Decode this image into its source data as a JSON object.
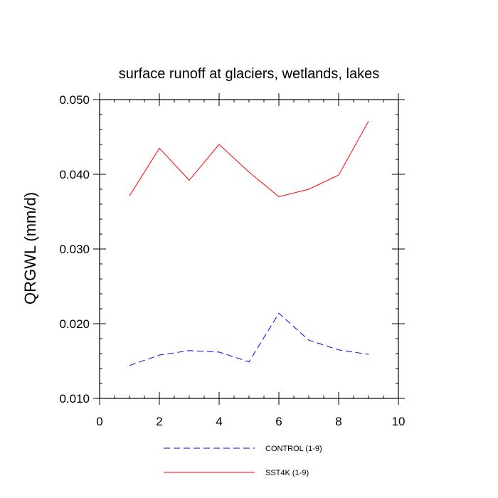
{
  "chart_data": {
    "type": "line",
    "title": "surface runoff at glaciers, wetlands, lakes",
    "ylabel": "QRGWL  (mm/d)",
    "xlabel": "",
    "xlim": [
      0,
      10
    ],
    "ylim": [
      0.01,
      0.05
    ],
    "x_ticks": [
      0,
      2,
      4,
      6,
      8,
      10
    ],
    "x_tick_labels": [
      "0",
      "2",
      "4",
      "6",
      "8",
      "10"
    ],
    "y_ticks": [
      0.01,
      0.02,
      0.03,
      0.04,
      0.05
    ],
    "y_tick_labels": [
      "0.010",
      "0.020",
      "0.030",
      "0.040",
      "0.050"
    ],
    "x_minor_step": 0.5,
    "y_minor_step": 0.002,
    "grid": false,
    "legend_position": "bottom",
    "x": [
      1,
      2,
      3,
      4,
      5,
      6,
      7,
      8,
      9
    ],
    "series": [
      {
        "name": "CONTROL (1-9)",
        "color": "#0000ff",
        "dash": "dashed",
        "values": [
          0.0144,
          0.0158,
          0.0164,
          0.0162,
          0.0149,
          0.0214,
          0.0178,
          0.0165,
          0.0159
        ]
      },
      {
        "name": "SST4K (1-9)",
        "color": "#ff0000",
        "dash": "solid",
        "values": [
          0.0371,
          0.0435,
          0.0392,
          0.044,
          0.0403,
          0.037,
          0.038,
          0.0399,
          0.0471
        ]
      }
    ]
  }
}
